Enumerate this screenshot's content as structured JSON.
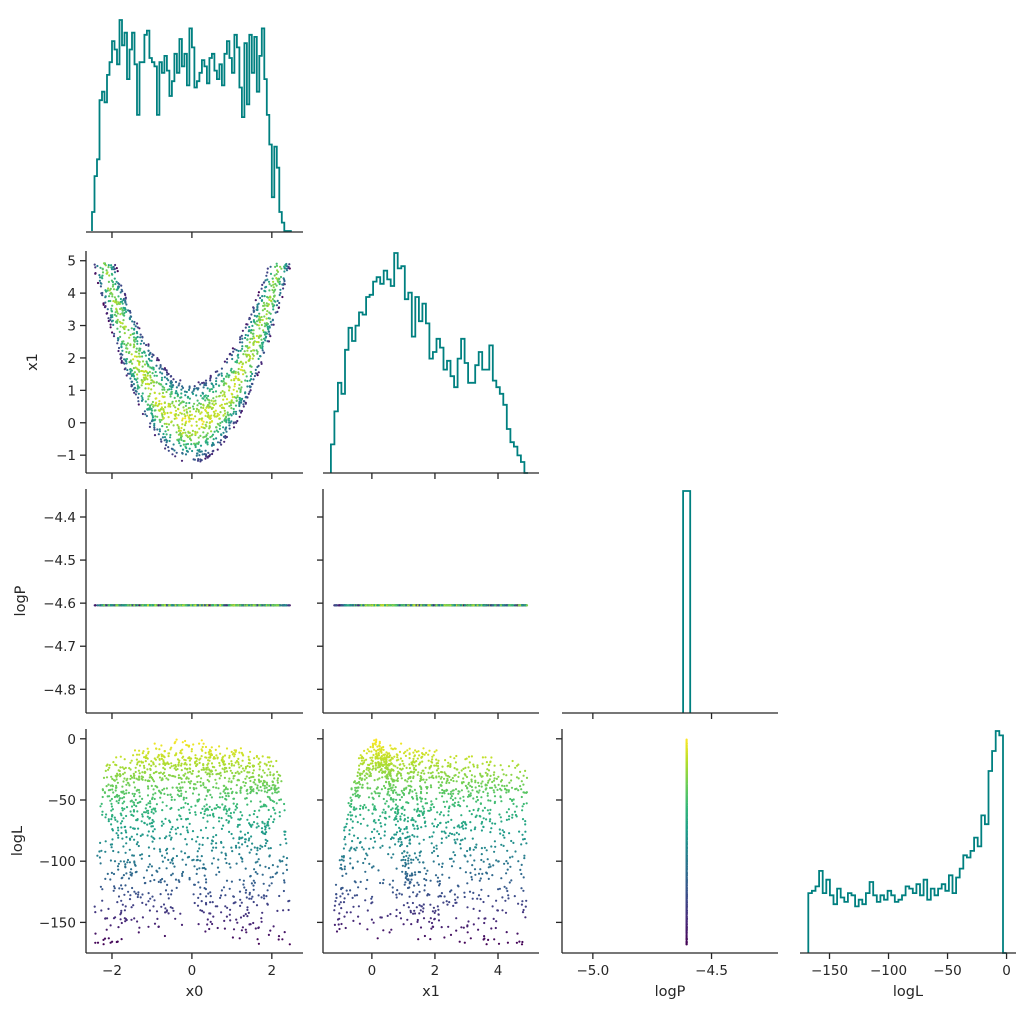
{
  "chart_data": {
    "type": "pairplot-corner",
    "variables": [
      "x0",
      "x1",
      "logP",
      "logL"
    ],
    "axis_labels": {
      "x0": "x0",
      "x1": "x1",
      "logP": "logP",
      "logL": "logL"
    },
    "ranges": {
      "x0": [
        -2.65,
        2.78
      ],
      "x1": [
        -1.55,
        5.3
      ],
      "logP": [
        -4.855,
        -4.335
      ],
      "logL": [
        -175,
        8
      ],
      "logP_hist_x": [
        -5.13,
        -4.22
      ],
      "logL_hist_x": [
        -175,
        8
      ]
    },
    "ticks": {
      "x0": {
        "values": [
          -2,
          0,
          2
        ],
        "labels": [
          "−2",
          "0",
          "2"
        ]
      },
      "x1": {
        "values": [
          -1,
          0,
          1,
          2,
          3,
          4,
          5
        ],
        "labels": [
          "−1",
          "0",
          "1",
          "2",
          "3",
          "4",
          "5"
        ]
      },
      "x1_bottom": {
        "values": [
          0,
          2,
          4
        ],
        "labels": [
          "0",
          "2",
          "4"
        ]
      },
      "logP": {
        "values": [
          -4.4,
          -4.5,
          -4.6,
          -4.7,
          -4.8
        ],
        "labels": [
          "−4.4",
          "−4.5",
          "−4.6",
          "−4.7",
          "−4.8"
        ]
      },
      "logP_bottom": {
        "values": [
          -5.0,
          -4.5
        ],
        "labels": [
          "−5.0",
          "−4.5"
        ]
      },
      "logL": {
        "values": [
          0,
          -50,
          -100,
          -150
        ],
        "labels": [
          "0",
          "−50",
          "−100",
          "−150"
        ]
      },
      "logL_bottom": {
        "values": [
          -150,
          -100,
          -50,
          0
        ],
        "labels": [
          "−150",
          "−100",
          "−50",
          "0"
        ]
      }
    },
    "histograms": {
      "x0": {
        "range": [
          -2.5,
          2.5
        ],
        "counts": [
          0.09,
          0.26,
          0.34,
          0.62,
          0.66,
          0.61,
          0.74,
          0.8,
          0.9,
          0.86,
          0.79,
          1.0,
          0.88,
          0.94,
          0.72,
          0.86,
          0.94,
          0.79,
          0.55,
          0.8,
          0.8,
          0.93,
          0.95,
          0.82,
          0.8,
          0.78,
          0.55,
          0.8,
          0.75,
          0.83,
          0.76,
          0.64,
          0.71,
          0.84,
          0.75,
          0.91,
          0.78,
          0.84,
          0.69,
          0.96,
          0.87,
          0.68,
          0.71,
          0.75,
          0.81,
          0.78,
          0.7,
          0.82,
          0.84,
          0.76,
          0.72,
          0.79,
          0.69,
          0.84,
          0.9,
          0.82,
          0.75,
          0.93,
          0.87,
          0.68,
          0.54,
          0.89,
          0.6,
          0.93,
          0.75,
          0.92,
          0.66,
          0.83,
          0.96,
          0.72,
          0.55,
          0.41,
          0.16,
          0.4,
          0.3,
          0.09,
          0.04,
          0.0,
          0.0,
          0.0
        ]
      },
      "x1": {
        "range": [
          -1.3,
          4.95
        ],
        "counts": [
          0.13,
          0.28,
          0.41,
          0.36,
          0.56,
          0.66,
          0.6,
          0.67,
          0.73,
          0.72,
          0.8,
          0.81,
          0.87,
          0.89,
          0.86,
          0.92,
          0.88,
          0.85,
          1.0,
          0.93,
          0.94,
          0.79,
          0.82,
          0.62,
          0.8,
          0.69,
          0.77,
          0.68,
          0.52,
          0.55,
          0.61,
          0.57,
          0.47,
          0.51,
          0.44,
          0.39,
          0.52,
          0.61,
          0.5,
          0.41,
          0.41,
          0.49,
          0.55,
          0.47,
          0.47,
          0.58,
          0.42,
          0.39,
          0.36,
          0.31,
          0.2,
          0.14,
          0.12,
          0.08,
          0.05,
          0.0
        ]
      },
      "logP": {
        "range": [
          -4.62,
          -4.59
        ],
        "counts": [
          1.0
        ]
      },
      "logL": {
        "range": [
          -168,
          0
        ],
        "counts": [
          0.27,
          0.28,
          0.3,
          0.37,
          0.27,
          0.33,
          0.26,
          0.22,
          0.29,
          0.25,
          0.23,
          0.27,
          0.26,
          0.21,
          0.24,
          0.22,
          0.27,
          0.32,
          0.26,
          0.23,
          0.26,
          0.24,
          0.28,
          0.26,
          0.23,
          0.24,
          0.26,
          0.3,
          0.29,
          0.27,
          0.31,
          0.26,
          0.33,
          0.24,
          0.29,
          0.26,
          0.29,
          0.31,
          0.28,
          0.35,
          0.27,
          0.34,
          0.38,
          0.44,
          0.43,
          0.46,
          0.52,
          0.48,
          0.62,
          0.58,
          0.82,
          0.91,
          1.0,
          0.98,
          0.0
        ],
        "note_tail": "last bin drops to 0 at logL≈0"
      }
    },
    "scatter": {
      "colormap": "viridis",
      "color_by": "logL",
      "color_range": [
        -168,
        0
      ],
      "logP_constant": -4.605,
      "n_points": 1500,
      "model": "x1 = x0^2 - 1.25 + band, band in [0, 2.5]; logL decreases with distance from band centre and with x0^2",
      "point_color_low": "#440154",
      "point_color_high": "#fde725"
    },
    "hist_color": "#008080",
    "grid": false,
    "legend": "none"
  }
}
